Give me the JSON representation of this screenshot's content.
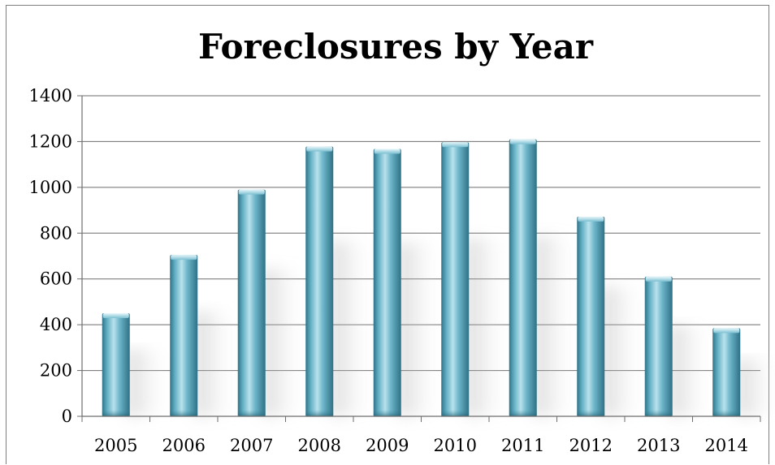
{
  "chart_data": {
    "type": "bar",
    "title": "Foreclosures by Year",
    "categories": [
      "2005",
      "2006",
      "2007",
      "2008",
      "2009",
      "2010",
      "2011",
      "2012",
      "2013",
      "2014"
    ],
    "values": [
      450,
      705,
      990,
      1178,
      1168,
      1197,
      1210,
      872,
      610,
      385
    ],
    "xlabel": "",
    "ylabel": "",
    "ylim": [
      0,
      1400
    ],
    "yticks": [
      "0",
      "200",
      "400",
      "600",
      "800",
      "1000",
      "1200",
      "1400"
    ],
    "grid": true,
    "legend": "none",
    "bar_color": "#4f9db4",
    "bar_highlight": "#b9e2ec",
    "bar_shade": "#2e7186"
  }
}
